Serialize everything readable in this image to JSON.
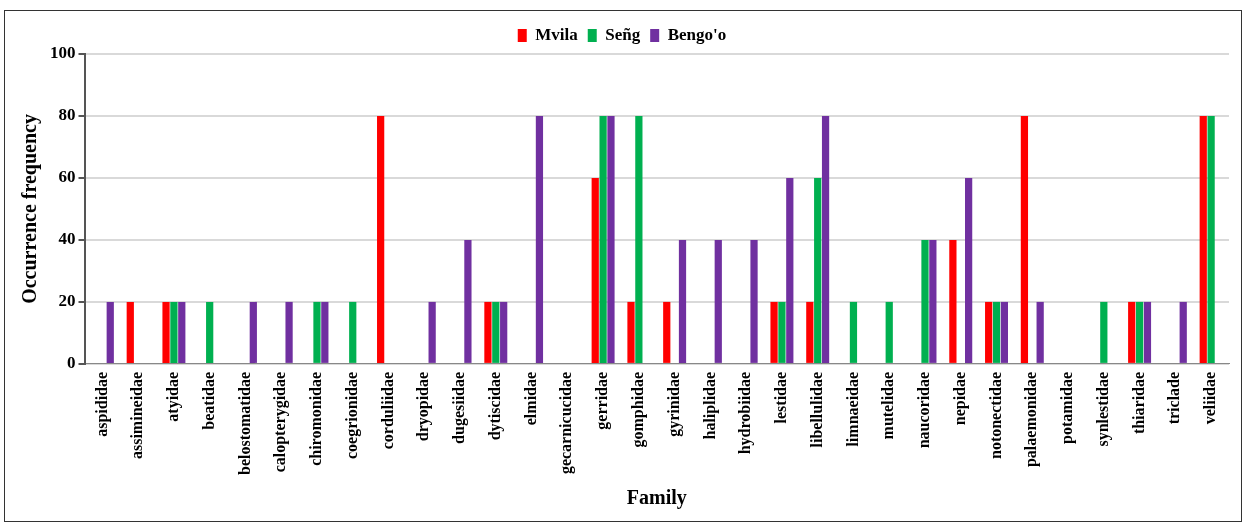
{
  "chart_data": {
    "type": "bar",
    "xlabel": "Family",
    "ylabel": "Occurrence frequency",
    "categories": [
      "aspididae",
      "assimineidae",
      "atyidae",
      "beatidae",
      "belostomatidae",
      "calopterygidae",
      "chiromonidae",
      "coegrionidae",
      "corduliidae",
      "dryopidae",
      "dugesiidae",
      "dytiscidae",
      "elmidae",
      "gecarnicucidae",
      "gerridae",
      "gomphidae",
      "gyrinidae",
      "haliplidae",
      "hydrobiidae",
      "lestidae",
      "libellulidae",
      "limnaeidae",
      "mutelidae",
      "naucoridae",
      "nepidae",
      "notonectidae",
      "palaemonidae",
      "potamidae",
      "synlestidae",
      "thiaridae",
      "triclade",
      "veliidae"
    ],
    "series": [
      {
        "name": "Mvila",
        "color": "#ff0000",
        "values": [
          0,
          20,
          20,
          0,
          0,
          0,
          0,
          0,
          80,
          0,
          0,
          20,
          0,
          0,
          60,
          20,
          20,
          0,
          0,
          20,
          20,
          0,
          0,
          0,
          40,
          20,
          80,
          0,
          0,
          20,
          0,
          80
        ]
      },
      {
        "name": "Señg",
        "color": "#00b050",
        "values": [
          0,
          0,
          20,
          20,
          0,
          0,
          20,
          20,
          0,
          0,
          0,
          20,
          0,
          0,
          80,
          80,
          0,
          0,
          0,
          20,
          60,
          20,
          20,
          40,
          0,
          20,
          0,
          0,
          20,
          20,
          0,
          80
        ]
      },
      {
        "name": "Bengo'o",
        "color": "#7030a0",
        "values": [
          20,
          0,
          20,
          0,
          20,
          20,
          20,
          0,
          0,
          20,
          40,
          20,
          80,
          0,
          80,
          0,
          40,
          40,
          40,
          60,
          80,
          0,
          0,
          40,
          60,
          20,
          20,
          0,
          0,
          20,
          20,
          0
        ]
      }
    ],
    "ylim": [
      0,
      100
    ],
    "yticks": [
      0,
      20,
      40,
      60,
      80,
      100
    ],
    "grid": "y",
    "legend": "top"
  }
}
